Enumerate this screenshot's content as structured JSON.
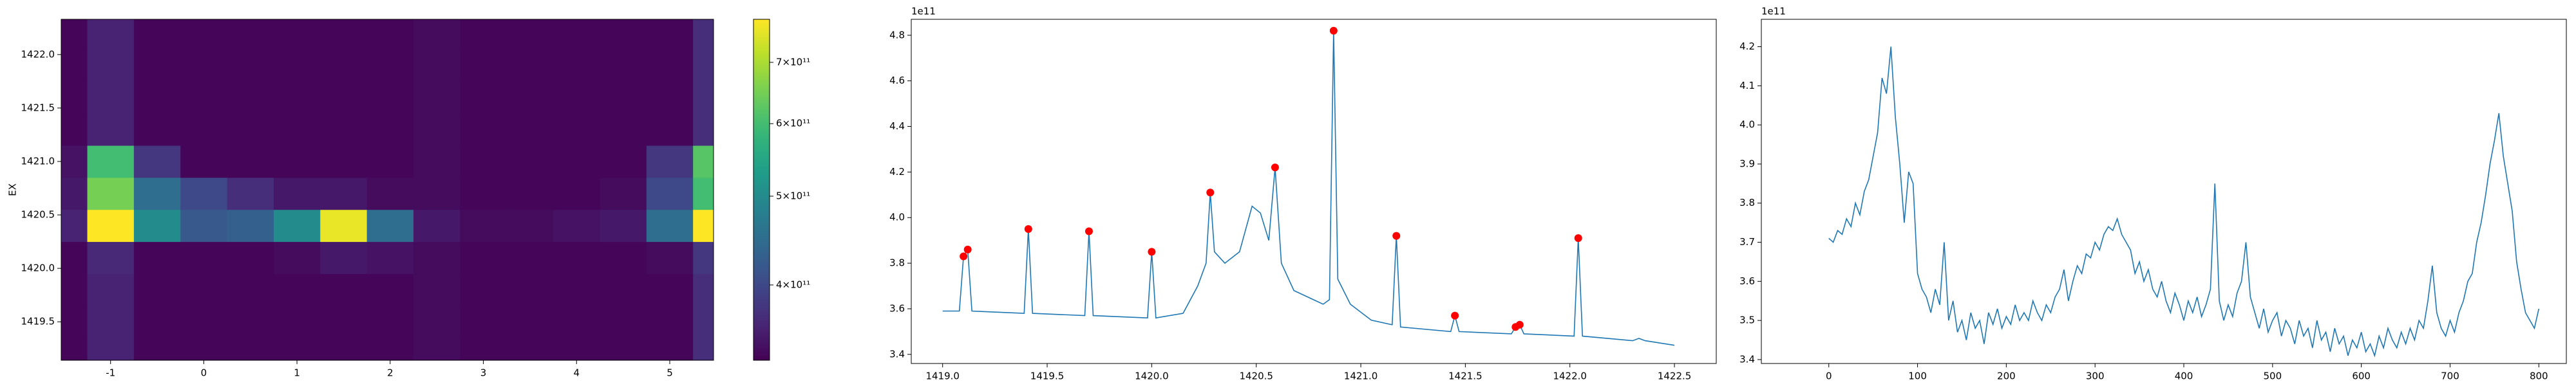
{
  "chart_data": [
    {
      "type": "heatmap",
      "ylabel": "EX",
      "x": [
        -1.5,
        -1,
        -0.5,
        0,
        0.5,
        1,
        1.5,
        2,
        2.5,
        3,
        3.5,
        4,
        4.5,
        5,
        5.5
      ],
      "y": [
        1419.2,
        1419.5,
        1419.8,
        1420.1,
        1420.4,
        1420.7,
        1421.0,
        1421.3,
        1421.6,
        1421.9,
        1422.2
      ],
      "z": [
        [
          335000000000.0,
          360000000000.0,
          335000000000.0,
          335000000000.0,
          335000000000.0,
          335000000000.0,
          335000000000.0,
          335000000000.0,
          340000000000.0,
          335000000000.0,
          335000000000.0,
          335000000000.0,
          335000000000.0,
          335000000000.0,
          370000000000.0
        ],
        [
          335000000000.0,
          360000000000.0,
          335000000000.0,
          335000000000.0,
          335000000000.0,
          335000000000.0,
          335000000000.0,
          335000000000.0,
          340000000000.0,
          335000000000.0,
          335000000000.0,
          335000000000.0,
          335000000000.0,
          335000000000.0,
          370000000000.0
        ],
        [
          335000000000.0,
          360000000000.0,
          335000000000.0,
          335000000000.0,
          335000000000.0,
          335000000000.0,
          335000000000.0,
          335000000000.0,
          340000000000.0,
          335000000000.0,
          335000000000.0,
          335000000000.0,
          335000000000.0,
          335000000000.0,
          370000000000.0
        ],
        [
          335000000000.0,
          365000000000.0,
          335000000000.0,
          335000000000.0,
          335000000000.0,
          340000000000.0,
          350000000000.0,
          345000000000.0,
          340000000000.0,
          335000000000.0,
          335000000000.0,
          335000000000.0,
          335000000000.0,
          340000000000.0,
          380000000000.0
        ],
        [
          360000000000.0,
          800000000000.0,
          500000000000.0,
          420000000000.0,
          430000000000.0,
          500000000000.0,
          760000000000.0,
          450000000000.0,
          350000000000.0,
          340000000000.0,
          340000000000.0,
          345000000000.0,
          350000000000.0,
          450000000000.0,
          800000000000.0
        ],
        [
          350000000000.0,
          650000000000.0,
          450000000000.0,
          400000000000.0,
          370000000000.0,
          350000000000.0,
          350000000000.0,
          340000000000.0,
          340000000000.0,
          335000000000.0,
          335000000000.0,
          335000000000.0,
          340000000000.0,
          400000000000.0,
          600000000000.0
        ],
        [
          345000000000.0,
          600000000000.0,
          380000000000.0,
          335000000000.0,
          335000000000.0,
          335000000000.0,
          335000000000.0,
          335000000000.0,
          340000000000.0,
          335000000000.0,
          335000000000.0,
          335000000000.0,
          335000000000.0,
          380000000000.0,
          620000000000.0
        ],
        [
          335000000000.0,
          360000000000.0,
          335000000000.0,
          335000000000.0,
          335000000000.0,
          335000000000.0,
          335000000000.0,
          335000000000.0,
          340000000000.0,
          335000000000.0,
          335000000000.0,
          335000000000.0,
          335000000000.0,
          335000000000.0,
          370000000000.0
        ],
        [
          335000000000.0,
          360000000000.0,
          335000000000.0,
          335000000000.0,
          335000000000.0,
          335000000000.0,
          335000000000.0,
          335000000000.0,
          340000000000.0,
          335000000000.0,
          335000000000.0,
          335000000000.0,
          335000000000.0,
          335000000000.0,
          370000000000.0
        ],
        [
          335000000000.0,
          360000000000.0,
          335000000000.0,
          335000000000.0,
          335000000000.0,
          335000000000.0,
          335000000000.0,
          335000000000.0,
          340000000000.0,
          335000000000.0,
          335000000000.0,
          335000000000.0,
          335000000000.0,
          335000000000.0,
          370000000000.0
        ],
        [
          335000000000.0,
          360000000000.0,
          335000000000.0,
          335000000000.0,
          335000000000.0,
          335000000000.0,
          335000000000.0,
          335000000000.0,
          340000000000.0,
          335000000000.0,
          335000000000.0,
          335000000000.0,
          335000000000.0,
          335000000000.0,
          370000000000.0
        ]
      ],
      "xlim": [
        -1.53,
        5.47
      ],
      "ylim": [
        1419.14,
        1422.33
      ],
      "xticks": [
        -1,
        0,
        1,
        2,
        3,
        4,
        5
      ],
      "yticks": [
        1419.5,
        {
          "value": 1420,
          "label": "1420.0"
        },
        1420.5,
        {
          "value": 1421,
          "label": "1421.0"
        },
        1421.5,
        {
          "value": 1422,
          "label": "1422.0"
        }
      ],
      "colorbar": {
        "colormap": "viridis",
        "log": true,
        "lim": [
          331000000000.0,
          780000000000.0
        ],
        "ticks": [
          {
            "value": 400000000000.0,
            "label": "4×10¹¹"
          },
          {
            "value": 500000000000.0,
            "label": "5×10¹¹"
          },
          {
            "value": 600000000000.0,
            "label": "6×10¹¹"
          },
          {
            "value": 700000000000.0,
            "label": "7×10¹¹"
          }
        ]
      }
    },
    {
      "type": "line",
      "offset_label": "1e11",
      "xlim": [
        1418.85,
        1422.7
      ],
      "ylim": [
        3.36,
        4.87
      ],
      "xticks": [
        {
          "value": 1419,
          "label": "1419.0"
        },
        1419.5,
        {
          "value": 1420,
          "label": "1420.0"
        },
        1420.5,
        {
          "value": 1421,
          "label": "1421.0"
        },
        1421.5,
        {
          "value": 1422,
          "label": "1422.0"
        },
        1422.5
      ],
      "yticks": [
        3.4,
        3.6,
        3.8,
        {
          "value": 4,
          "label": "4.0"
        },
        4.2,
        4.4,
        4.6,
        4.8
      ],
      "series": [
        {
          "color": "#1f77b4",
          "x": [
            1419.0,
            1419.08,
            1419.1,
            1419.12,
            1419.14,
            1419.39,
            1419.41,
            1419.43,
            1419.68,
            1419.7,
            1419.72,
            1419.98,
            1420.0,
            1420.02,
            1420.15,
            1420.22,
            1420.26,
            1420.28,
            1420.3,
            1420.35,
            1420.42,
            1420.48,
            1420.52,
            1420.56,
            1420.59,
            1420.62,
            1420.68,
            1420.75,
            1420.82,
            1420.85,
            1420.87,
            1420.89,
            1420.95,
            1421.05,
            1421.15,
            1421.17,
            1421.19,
            1421.43,
            1421.45,
            1421.47,
            1421.72,
            1421.74,
            1421.76,
            1421.78,
            1422.02,
            1422.04,
            1422.06,
            1422.3,
            1422.33,
            1422.36,
            1422.5
          ],
          "values": [
            3.59,
            3.59,
            3.83,
            3.86,
            3.59,
            3.58,
            3.95,
            3.58,
            3.57,
            3.94,
            3.57,
            3.56,
            3.85,
            3.56,
            3.58,
            3.7,
            3.8,
            4.11,
            3.85,
            3.8,
            3.85,
            4.05,
            4.02,
            3.9,
            4.22,
            3.8,
            3.68,
            3.65,
            3.62,
            3.64,
            4.82,
            3.73,
            3.62,
            3.55,
            3.53,
            3.92,
            3.52,
            3.5,
            3.57,
            3.5,
            3.49,
            3.52,
            3.53,
            3.49,
            3.48,
            3.91,
            3.48,
            3.46,
            3.47,
            3.46,
            3.44
          ]
        },
        {
          "color": "red",
          "marker": "dot",
          "x": [
            1419.1,
            1419.12,
            1419.41,
            1419.7,
            1420.0,
            1420.28,
            1420.59,
            1420.87,
            1421.17,
            1421.45,
            1421.74,
            1421.76,
            1422.04
          ],
          "values": [
            3.83,
            3.86,
            3.95,
            3.94,
            3.85,
            4.11,
            4.22,
            4.82,
            3.92,
            3.57,
            3.52,
            3.53,
            3.91
          ]
        }
      ]
    },
    {
      "type": "line",
      "offset_label": "1e11",
      "xlim": [
        -76,
        831
      ],
      "ylim": [
        3.39,
        4.27
      ],
      "xticks": [
        0,
        100,
        200,
        300,
        400,
        500,
        600,
        700,
        800
      ],
      "yticks": [
        3.4,
        3.5,
        3.6,
        3.7,
        3.8,
        3.9,
        {
          "value": 4,
          "label": "4.0"
        },
        4.1,
        4.2
      ],
      "series": [
        {
          "color": "#1f77b4",
          "x": [
            0,
            5,
            10,
            15,
            20,
            25,
            30,
            35,
            40,
            45,
            50,
            55,
            60,
            65,
            70,
            75,
            80,
            85,
            90,
            95,
            100,
            105,
            110,
            115,
            120,
            125,
            130,
            135,
            140,
            145,
            150,
            155,
            160,
            165,
            170,
            175,
            180,
            185,
            190,
            195,
            200,
            205,
            210,
            215,
            220,
            225,
            230,
            235,
            240,
            245,
            250,
            255,
            260,
            265,
            270,
            275,
            280,
            285,
            290,
            295,
            300,
            305,
            310,
            315,
            320,
            325,
            330,
            335,
            340,
            345,
            350,
            355,
            360,
            365,
            370,
            375,
            380,
            385,
            390,
            395,
            400,
            405,
            410,
            415,
            420,
            425,
            430,
            435,
            440,
            445,
            450,
            455,
            460,
            465,
            470,
            475,
            480,
            485,
            490,
            495,
            500,
            505,
            510,
            515,
            520,
            525,
            530,
            535,
            540,
            545,
            550,
            555,
            560,
            565,
            570,
            575,
            580,
            585,
            590,
            595,
            600,
            605,
            610,
            615,
            620,
            625,
            630,
            635,
            640,
            645,
            650,
            655,
            660,
            665,
            670,
            675,
            680,
            685,
            690,
            695,
            700,
            705,
            710,
            715,
            720,
            725,
            730,
            735,
            740,
            745,
            750,
            755,
            760,
            765,
            770,
            775,
            780,
            785,
            790,
            795,
            800
          ],
          "values": [
            3.71,
            3.7,
            3.73,
            3.72,
            3.76,
            3.74,
            3.8,
            3.77,
            3.83,
            3.86,
            3.92,
            3.98,
            4.12,
            4.08,
            4.2,
            4.02,
            3.9,
            3.75,
            3.88,
            3.85,
            3.62,
            3.58,
            3.56,
            3.52,
            3.58,
            3.54,
            3.7,
            3.5,
            3.55,
            3.47,
            3.5,
            3.45,
            3.52,
            3.48,
            3.5,
            3.44,
            3.52,
            3.49,
            3.53,
            3.48,
            3.51,
            3.49,
            3.54,
            3.5,
            3.52,
            3.5,
            3.55,
            3.52,
            3.5,
            3.54,
            3.52,
            3.56,
            3.58,
            3.63,
            3.55,
            3.6,
            3.64,
            3.62,
            3.67,
            3.66,
            3.7,
            3.68,
            3.72,
            3.74,
            3.73,
            3.76,
            3.72,
            3.7,
            3.68,
            3.62,
            3.65,
            3.6,
            3.63,
            3.58,
            3.56,
            3.6,
            3.55,
            3.52,
            3.57,
            3.54,
            3.5,
            3.55,
            3.52,
            3.56,
            3.51,
            3.54,
            3.58,
            3.85,
            3.55,
            3.5,
            3.54,
            3.51,
            3.57,
            3.6,
            3.7,
            3.56,
            3.52,
            3.48,
            3.53,
            3.47,
            3.5,
            3.52,
            3.46,
            3.5,
            3.48,
            3.44,
            3.5,
            3.46,
            3.48,
            3.43,
            3.5,
            3.45,
            3.47,
            3.42,
            3.48,
            3.44,
            3.46,
            3.41,
            3.45,
            3.43,
            3.47,
            3.42,
            3.44,
            3.41,
            3.46,
            3.43,
            3.48,
            3.45,
            3.43,
            3.47,
            3.44,
            3.48,
            3.45,
            3.5,
            3.48,
            3.55,
            3.64,
            3.52,
            3.48,
            3.46,
            3.5,
            3.47,
            3.52,
            3.55,
            3.6,
            3.62,
            3.7,
            3.75,
            3.82,
            3.9,
            3.96,
            4.03,
            3.92,
            3.85,
            3.78,
            3.65,
            3.58,
            3.52,
            3.5,
            3.48,
            3.53
          ]
        }
      ]
    }
  ]
}
